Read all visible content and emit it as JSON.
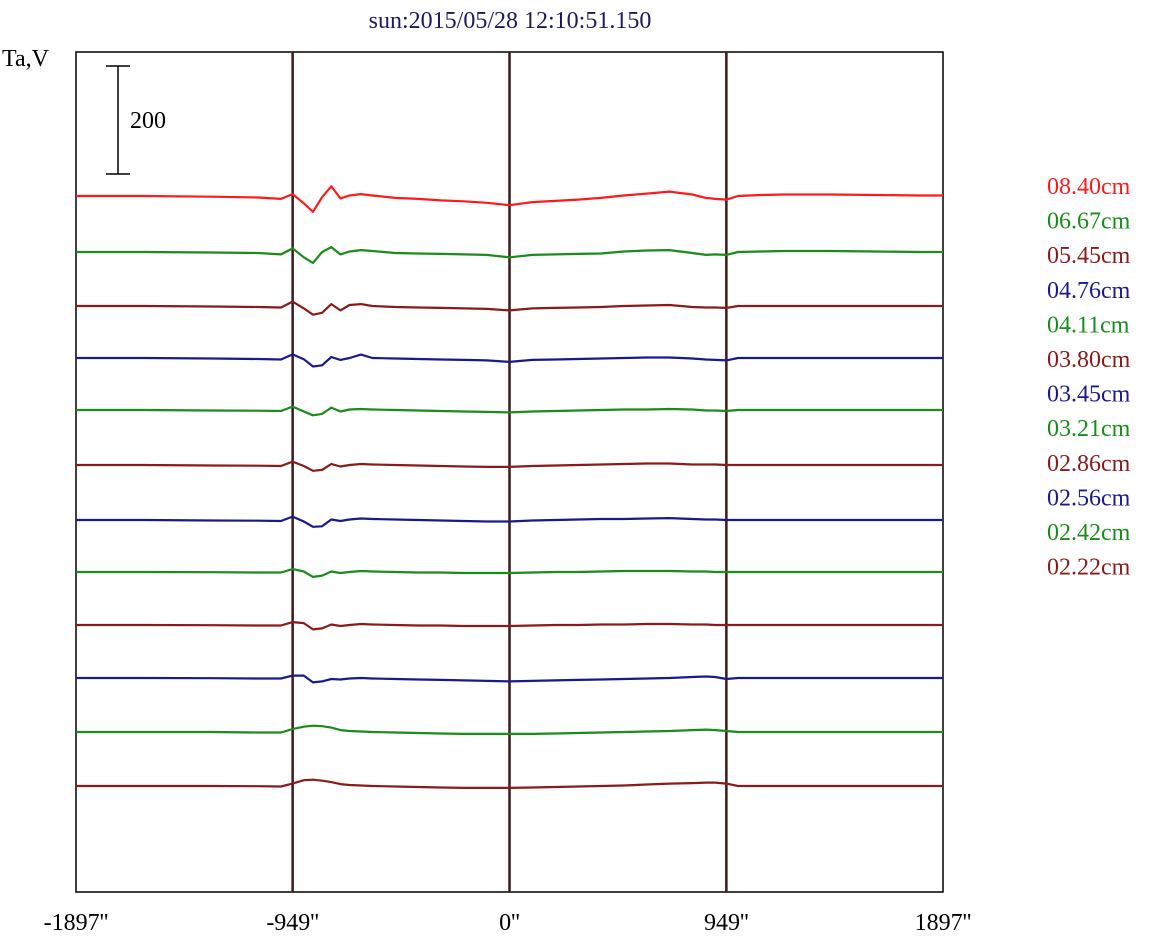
{
  "chart_data": {
    "type": "line",
    "title": "sun:2015/05/28 12:10:51.150",
    "ylabel": "Ta,V",
    "scale_bar": {
      "label": "200",
      "value": 200
    },
    "x_ticks": [
      {
        "value": -1897,
        "label": "-1897''"
      },
      {
        "value": -949,
        "label": "-949''"
      },
      {
        "value": 0,
        "label": "0''"
      },
      {
        "value": 949,
        "label": "949''"
      },
      {
        "value": 1897,
        "label": "1897''"
      }
    ],
    "xlim": [
      -1897,
      1897
    ],
    "vertical_lines": [
      -949,
      0,
      949
    ],
    "colors": {
      "frame": "#000000",
      "vline": "#3a1a1a"
    },
    "series_common_x": [
      -1897,
      -1600,
      -1300,
      -1100,
      -1000,
      -949,
      -900,
      -860,
      -820,
      -780,
      -740,
      -700,
      -650,
      -600,
      -500,
      -400,
      -300,
      -200,
      -100,
      0,
      100,
      200,
      300,
      400,
      500,
      600,
      700,
      800,
      860,
      900,
      949,
      1000,
      1100,
      1200,
      1400,
      1600,
      1800,
      1897
    ],
    "series": [
      {
        "name": "08.40cm",
        "color": "#ff1a1a",
        "offset": 196,
        "values": [
          0,
          0,
          -3,
          -6,
          -12,
          8,
          -30,
          -65,
          -5,
          40,
          -10,
          2,
          8,
          2,
          -8,
          -12,
          -18,
          -22,
          -28,
          -38,
          -25,
          -20,
          -15,
          -8,
          2,
          10,
          18,
          6,
          -8,
          -12,
          -15,
          0,
          4,
          6,
          6,
          4,
          2,
          2
        ]
      },
      {
        "name": "06.67cm",
        "color": "#1a8c1a",
        "offset": 252,
        "values": [
          0,
          0,
          -2,
          -4,
          -10,
          15,
          -22,
          -45,
          0,
          20,
          -10,
          2,
          8,
          4,
          -4,
          -6,
          -8,
          -10,
          -12,
          -22,
          -12,
          -10,
          -8,
          -6,
          2,
          6,
          8,
          -4,
          -12,
          -10,
          -12,
          0,
          2,
          4,
          4,
          2,
          0,
          0
        ]
      },
      {
        "name": "05.45cm",
        "color": "#8b1a1a",
        "offset": 306,
        "values": [
          0,
          0,
          -2,
          -4,
          -6,
          18,
          -10,
          -36,
          -28,
          8,
          -18,
          4,
          8,
          0,
          -4,
          -6,
          -8,
          -10,
          -12,
          -18,
          -10,
          -8,
          -6,
          -4,
          0,
          2,
          4,
          -4,
          -6,
          -6,
          -8,
          0,
          0,
          0,
          0,
          0,
          0,
          0
        ]
      },
      {
        "name": "04.76cm",
        "color": "#1a1a8c",
        "offset": 358,
        "values": [
          0,
          0,
          -2,
          -4,
          -6,
          15,
          -5,
          -35,
          -30,
          4,
          -8,
          0,
          14,
          0,
          -2,
          -4,
          -6,
          -8,
          -10,
          -16,
          -8,
          -6,
          -4,
          -2,
          0,
          2,
          2,
          -2,
          -6,
          -8,
          -10,
          0,
          0,
          0,
          0,
          0,
          0,
          0
        ]
      },
      {
        "name": "04.11cm",
        "color": "#1a8c1a",
        "offset": 410,
        "values": [
          0,
          0,
          -2,
          -3,
          -4,
          14,
          -6,
          -22,
          -16,
          10,
          -6,
          2,
          4,
          2,
          0,
          -2,
          -4,
          -6,
          -8,
          -10,
          -6,
          -4,
          -2,
          0,
          2,
          2,
          4,
          2,
          -2,
          -2,
          -4,
          0,
          0,
          0,
          0,
          0,
          0,
          0
        ]
      },
      {
        "name": "03.80cm",
        "color": "#8b1a1a",
        "offset": 465,
        "values": [
          0,
          0,
          -2,
          -3,
          -4,
          14,
          -4,
          -24,
          -20,
          4,
          -6,
          0,
          4,
          2,
          0,
          -2,
          -4,
          -6,
          -8,
          -8,
          -4,
          -2,
          0,
          2,
          4,
          6,
          6,
          2,
          2,
          2,
          0,
          0,
          0,
          0,
          0,
          0,
          0,
          0
        ]
      },
      {
        "name": "03.45cm",
        "color": "#1a1a8c",
        "offset": 520,
        "values": [
          0,
          0,
          -2,
          -3,
          -4,
          14,
          -6,
          -28,
          -26,
          2,
          -4,
          2,
          6,
          4,
          2,
          0,
          -2,
          -4,
          -6,
          -6,
          -2,
          0,
          2,
          4,
          4,
          6,
          8,
          4,
          2,
          2,
          0,
          0,
          0,
          0,
          0,
          0,
          0,
          0
        ]
      },
      {
        "name": "03.21cm",
        "color": "#1a8c1a",
        "offset": 572,
        "values": [
          0,
          0,
          -1,
          -2,
          -2,
          12,
          2,
          -20,
          -15,
          2,
          -4,
          0,
          4,
          2,
          0,
          -2,
          -2,
          -4,
          -4,
          -4,
          -2,
          0,
          0,
          2,
          4,
          4,
          4,
          2,
          2,
          0,
          0,
          0,
          0,
          0,
          0,
          0,
          0,
          0
        ]
      },
      {
        "name": "02.86cm",
        "color": "#8b1a1a",
        "offset": 625,
        "values": [
          0,
          0,
          -1,
          -2,
          -2,
          12,
          8,
          -18,
          -14,
          2,
          -4,
          0,
          4,
          2,
          0,
          -2,
          -2,
          -4,
          -4,
          -4,
          -2,
          0,
          0,
          2,
          2,
          4,
          4,
          2,
          2,
          0,
          0,
          0,
          0,
          0,
          0,
          0,
          0,
          0
        ]
      },
      {
        "name": "02.56cm",
        "color": "#1a1a8c",
        "offset": 678,
        "values": [
          0,
          0,
          -1,
          -2,
          -2,
          10,
          10,
          -18,
          -14,
          -4,
          -6,
          -2,
          0,
          -2,
          -4,
          -6,
          -8,
          -10,
          -12,
          -14,
          -12,
          -10,
          -8,
          -6,
          -4,
          -2,
          0,
          4,
          6,
          4,
          -4,
          0,
          0,
          0,
          0,
          0,
          0,
          0
        ]
      },
      {
        "name": "02.42cm",
        "color": "#1a8c1a",
        "offset": 732,
        "values": [
          0,
          0,
          0,
          -2,
          -2,
          12,
          22,
          26,
          24,
          18,
          8,
          4,
          2,
          0,
          -2,
          -4,
          -6,
          -8,
          -8,
          -8,
          -8,
          -6,
          -4,
          -2,
          0,
          2,
          4,
          8,
          10,
          8,
          4,
          0,
          0,
          0,
          0,
          0,
          0,
          0
        ]
      },
      {
        "name": "02.22cm",
        "color": "#8b1a1a",
        "offset": 786,
        "values": [
          0,
          0,
          0,
          -1,
          -2,
          10,
          24,
          26,
          22,
          16,
          8,
          4,
          2,
          0,
          -2,
          -4,
          -6,
          -8,
          -8,
          -8,
          -6,
          -4,
          -2,
          0,
          2,
          6,
          10,
          12,
          14,
          14,
          10,
          0,
          0,
          0,
          0,
          0,
          0,
          0
        ]
      }
    ]
  }
}
